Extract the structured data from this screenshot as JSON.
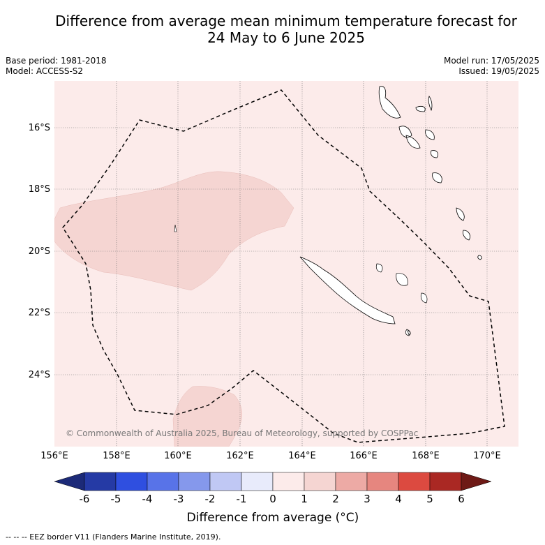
{
  "title": {
    "line1": "Difference from average mean minimum temperature forecast for",
    "line2": "24 May to 6 June 2025"
  },
  "meta_left": {
    "base_period": "Base period: 1981-2018",
    "model": "Model: ACCESS-S2"
  },
  "meta_right": {
    "model_run": "Model run: 17/05/2025",
    "issued": "Issued: 19/05/2025"
  },
  "map": {
    "background_color": "#fcebea",
    "anomaly_color": "#f5d5d2",
    "latitude_labels": [
      "16°S",
      "18°S",
      "20°S",
      "22°S",
      "24°S"
    ],
    "longitude_labels": [
      "156°E",
      "158°E",
      "160°E",
      "162°E",
      "164°E",
      "166°E",
      "168°E",
      "170°E"
    ],
    "copyright": "© Commonwealth of Australia 2025, Bureau of Meteorology, supported by COSPPac"
  },
  "colorbar": {
    "ticks": [
      "-6",
      "-5",
      "-4",
      "-3",
      "-2",
      "-1",
      "0",
      "1",
      "2",
      "3",
      "4",
      "5",
      "6"
    ],
    "colors": [
      "#253aa5",
      "#2f4fe0",
      "#5873e8",
      "#8598ec",
      "#c0c8f4",
      "#e8ebfb",
      "#fcebea",
      "#f5d5d2",
      "#edaaa5",
      "#e6867f",
      "#dc4a40",
      "#aa2823"
    ],
    "under_color": "#1c2a78",
    "over_color": "#6e1a16",
    "label": "Difference from average (°C)"
  },
  "footer": {
    "eez_note": "--  --  -- EEZ border V11 (Flanders Marine Institute, 2019)."
  }
}
